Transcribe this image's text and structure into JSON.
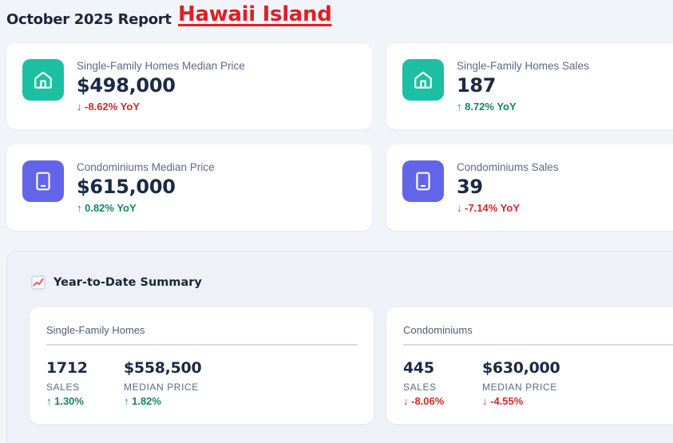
{
  "header": {
    "report_title": "October 2025 Report",
    "region": "Hawaii Island"
  },
  "colors": {
    "teal": "#1dbfa3",
    "indigo": "#6265ea",
    "positive": "#138660",
    "negative": "#cc2b2b",
    "region_red": "#e01f26"
  },
  "metrics": [
    {
      "label": "Single-Family Homes Median Price",
      "value": "$498,000",
      "change": "↓ -8.62% YoY",
      "direction": "down",
      "icon": "house-icon"
    },
    {
      "label": "Single-Family Homes Sales",
      "value": "187",
      "change": "↑ 8.72% YoY",
      "direction": "up",
      "icon": "house-icon"
    },
    {
      "label": "Condominiums Median Price",
      "value": "$615,000",
      "change": "↑ 0.82% YoY",
      "direction": "up",
      "icon": "condo-icon"
    },
    {
      "label": "Condominiums Sales",
      "value": "39",
      "change": "↓ -7.14% YoY",
      "direction": "down",
      "icon": "condo-icon"
    }
  ],
  "ytd": {
    "title": "Year-to-Date Summary",
    "icon": "chart-increasing-icon",
    "cards": [
      {
        "title": "Single-Family Homes",
        "sales_value": "1712",
        "sales_label": "SALES",
        "sales_change": "↑ 1.30%",
        "price_value": "$558,500",
        "price_label": "MEDIAN PRICE",
        "price_change": "↑ 1.82%"
      },
      {
        "title": "Condominiums",
        "sales_value": "445",
        "sales_label": "SALES",
        "sales_change": "↓ -8.06%",
        "price_value": "$630,000",
        "price_label": "MEDIAN PRICE",
        "price_change": "↓ -4.55%"
      }
    ]
  }
}
